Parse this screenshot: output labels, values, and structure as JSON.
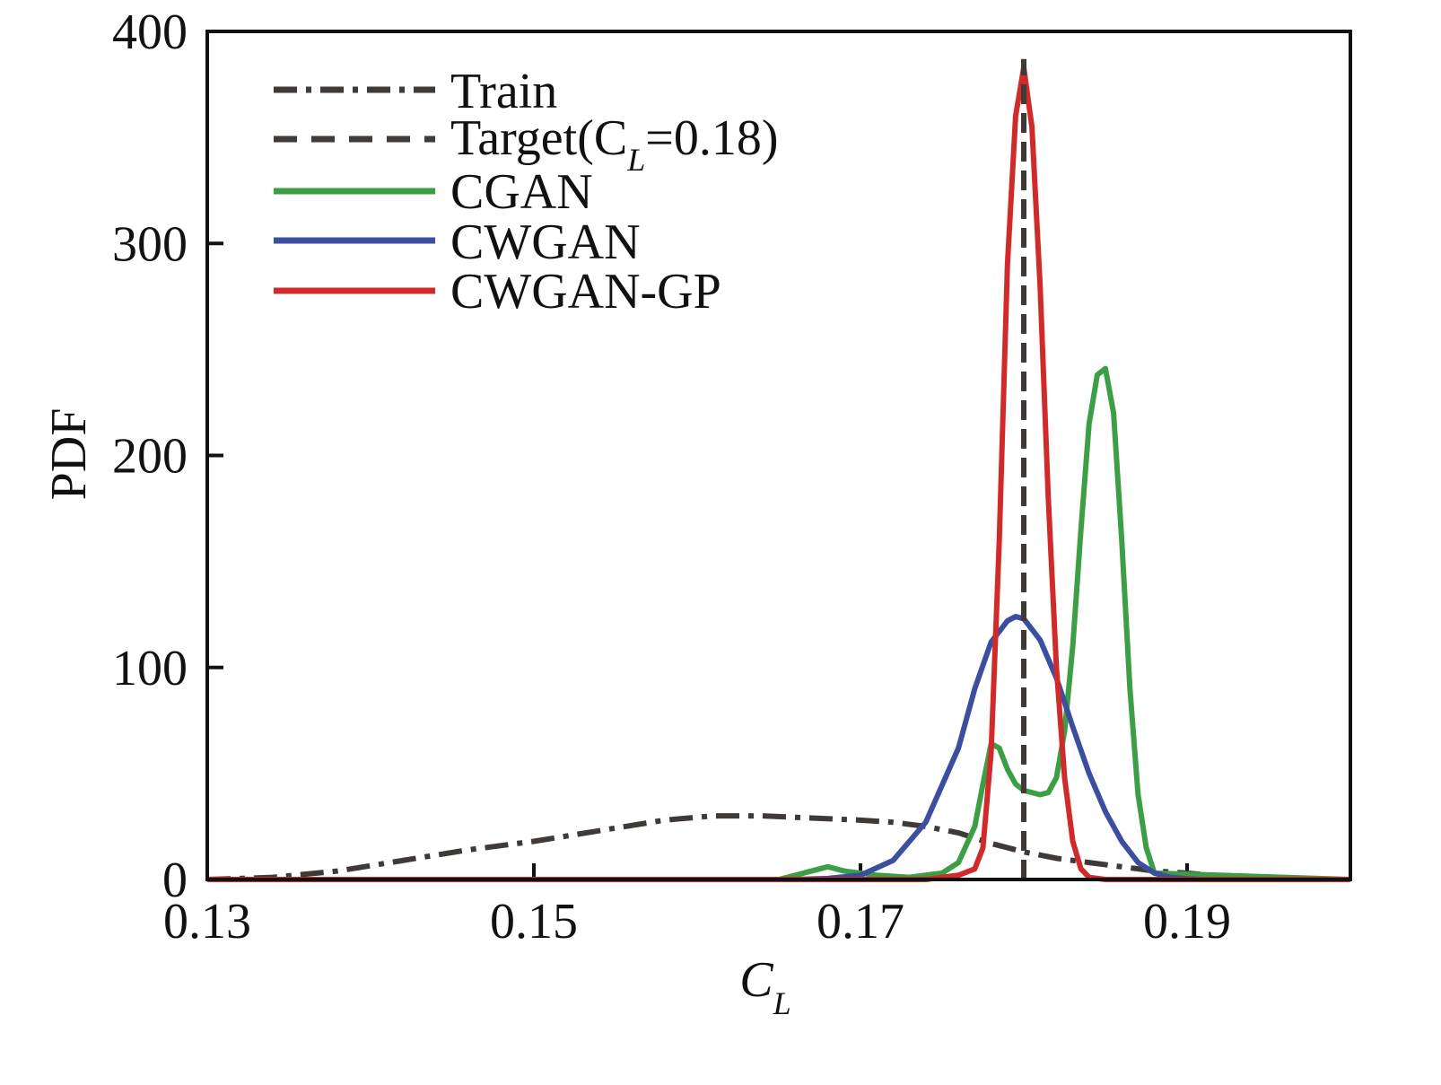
{
  "chart_data": {
    "type": "line",
    "title": "",
    "xlabel": "C",
    "xlabel_sub": "L",
    "ylabel": "PDF",
    "xlim": [
      0.13,
      0.2
    ],
    "ylim": [
      0,
      400
    ],
    "xticks": [
      0.13,
      0.15,
      0.17,
      0.19
    ],
    "xtick_labels": [
      "0.13",
      "0.15",
      "0.17",
      "0.19"
    ],
    "yticks": [
      0,
      100,
      200,
      300,
      400
    ],
    "ytick_labels": [
      "0",
      "100",
      "200",
      "300",
      "400"
    ],
    "grid": false,
    "legend_position": "top-left",
    "series": [
      {
        "name": "Train",
        "style": "dashdot",
        "color": "#3f3a37",
        "x": [
          0.13,
          0.134,
          0.138,
          0.142,
          0.146,
          0.15,
          0.154,
          0.158,
          0.161,
          0.164,
          0.167,
          0.17,
          0.172,
          0.174,
          0.176,
          0.178,
          0.18,
          0.182,
          0.184,
          0.186,
          0.188,
          0.19,
          0.193,
          0.196,
          0.2
        ],
        "y": [
          0,
          1,
          4,
          9,
          14,
          18,
          23,
          28,
          30,
          30,
          29,
          28,
          27,
          25,
          22,
          17,
          13,
          10,
          8,
          6,
          4,
          3,
          1,
          0.5,
          0
        ]
      },
      {
        "name": "Target(C",
        "name_sub": "L",
        "name_tail": "=0.18)",
        "style": "dashed",
        "color": "#3f3a37",
        "x": [
          0.18,
          0.18
        ],
        "y": [
          0,
          387
        ]
      },
      {
        "name": "CGAN",
        "style": "solid",
        "color": "#3c9e45",
        "x": [
          0.13,
          0.165,
          0.167,
          0.168,
          0.169,
          0.171,
          0.173,
          0.175,
          0.176,
          0.177,
          0.1775,
          0.178,
          0.1785,
          0.179,
          0.1795,
          0.18,
          0.1805,
          0.181,
          0.1815,
          0.182,
          0.1825,
          0.183,
          0.1835,
          0.184,
          0.1845,
          0.185,
          0.1855,
          0.186,
          0.1865,
          0.187,
          0.1875,
          0.188,
          0.2
        ],
        "y": [
          0,
          0,
          4,
          6,
          4,
          2,
          1,
          3,
          8,
          25,
          45,
          64,
          62,
          52,
          45,
          42,
          41,
          40,
          41,
          48,
          70,
          110,
          165,
          215,
          238,
          241,
          220,
          160,
          90,
          40,
          15,
          3,
          0
        ]
      },
      {
        "name": "CWGAN",
        "style": "solid",
        "color": "#3b4ea0",
        "x": [
          0.13,
          0.166,
          0.168,
          0.17,
          0.172,
          0.174,
          0.176,
          0.177,
          0.178,
          0.179,
          0.1795,
          0.18,
          0.181,
          0.182,
          0.183,
          0.184,
          0.185,
          0.186,
          0.187,
          0.188,
          0.189,
          0.19,
          0.191,
          0.2
        ],
        "y": [
          0,
          0,
          0.5,
          2,
          9,
          27,
          62,
          90,
          112,
          122,
          124,
          123,
          113,
          95,
          72,
          50,
          32,
          18,
          8,
          3,
          1,
          0.3,
          0,
          0
        ]
      },
      {
        "name": "CWGAN-GP",
        "style": "solid",
        "color": "#d12a2a",
        "x": [
          0.13,
          0.174,
          0.176,
          0.177,
          0.1775,
          0.178,
          0.1785,
          0.179,
          0.1795,
          0.18,
          0.1805,
          0.181,
          0.1815,
          0.182,
          0.1825,
          0.183,
          0.1835,
          0.184,
          0.185,
          0.186,
          0.2
        ],
        "y": [
          0,
          0,
          2,
          5,
          15,
          60,
          160,
          290,
          360,
          383,
          355,
          280,
          180,
          100,
          48,
          18,
          5,
          1,
          0,
          0,
          0
        ]
      }
    ]
  }
}
